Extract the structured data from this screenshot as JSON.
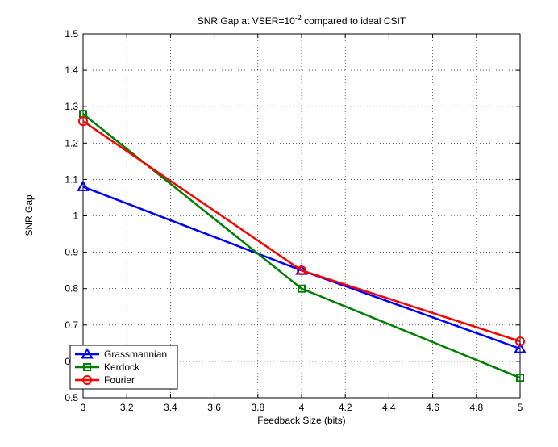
{
  "chart_data": {
    "type": "line",
    "title": "SNR Gap at VSER=10",
    "title_superscript": "-2",
    "title_suffix": " compared to ideal CSIT",
    "x_label": "Feedback Size (bits)",
    "y_label": "SNR Gap",
    "x": [
      3,
      4,
      5
    ],
    "series": [
      {
        "name": "Grassmannian",
        "color": "#0000ff",
        "marker": "triangle",
        "values": [
          1.08,
          0.85,
          0.635
        ]
      },
      {
        "name": "Kerdock",
        "color": "#008000",
        "marker": "square",
        "values": [
          1.28,
          0.8,
          0.555
        ]
      },
      {
        "name": "Fourier",
        "color": "#ff0000",
        "marker": "circle",
        "values": [
          1.26,
          0.85,
          0.655
        ]
      }
    ],
    "xlim": [
      3,
      5
    ],
    "xticks": [
      3,
      3.2,
      3.4,
      3.6,
      3.8,
      4,
      4.2,
      4.4,
      4.6,
      4.8,
      5
    ],
    "ylim": [
      0.5,
      1.5
    ],
    "yticks": [
      0.5,
      0.6,
      0.7,
      0.8,
      0.9,
      1,
      1.1,
      1.2,
      1.3,
      1.4,
      1.5
    ],
    "grid": true,
    "legend": "lower left"
  }
}
